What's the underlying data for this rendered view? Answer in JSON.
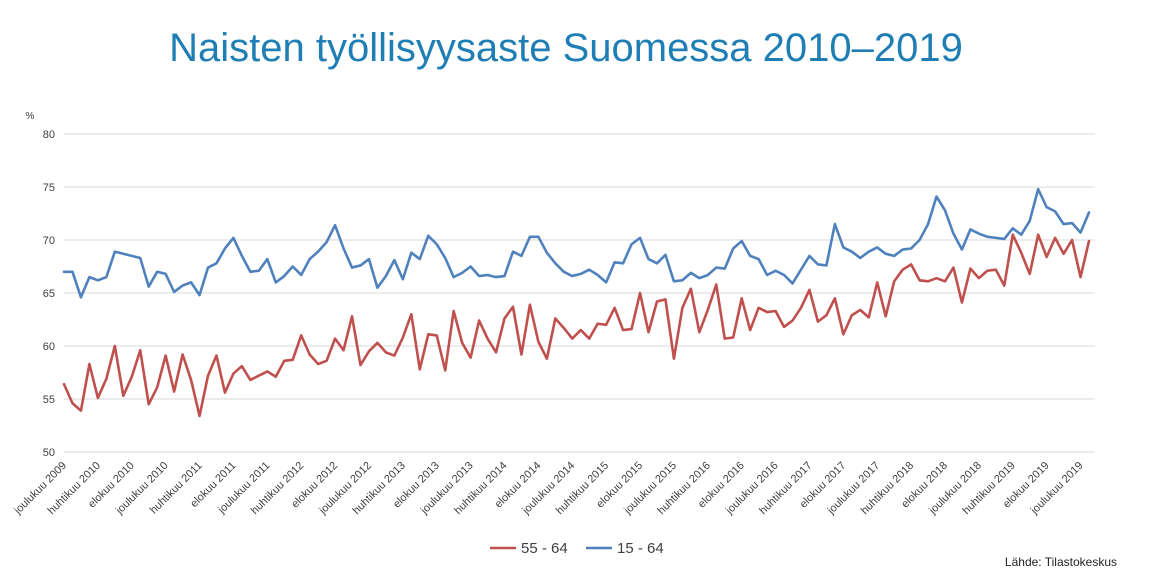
{
  "chart_data": {
    "type": "line",
    "title": "Naisten työllisyysaste Suomessa 2010–2019",
    "ylabel": "%",
    "ylim": [
      50,
      80
    ],
    "yticks": [
      50,
      55,
      60,
      65,
      70,
      75,
      80
    ],
    "grid": true,
    "legend_position": "bottom",
    "source": "Lähde: Tilastokeskus",
    "x_labels": [
      {
        "index": 0,
        "label": "joulukuu 2009"
      },
      {
        "index": 4,
        "label": "huhtikuu 2010"
      },
      {
        "index": 8,
        "label": "elokuu 2010"
      },
      {
        "index": 12,
        "label": "joulukuu 2010"
      },
      {
        "index": 16,
        "label": "huhtikuu 2011"
      },
      {
        "index": 20,
        "label": "elokuu 2011"
      },
      {
        "index": 24,
        "label": "joulukuu 2011"
      },
      {
        "index": 28,
        "label": "huhtikuu 2012"
      },
      {
        "index": 32,
        "label": "elokuu 2012"
      },
      {
        "index": 36,
        "label": "joulukuu 2012"
      },
      {
        "index": 40,
        "label": "huhtikuu 2013"
      },
      {
        "index": 44,
        "label": "elokuu 2013"
      },
      {
        "index": 48,
        "label": "joulukuu 2013"
      },
      {
        "index": 52,
        "label": "huhtikuu 2014"
      },
      {
        "index": 56,
        "label": "elokuu 2014"
      },
      {
        "index": 60,
        "label": "joulukuu 2014"
      },
      {
        "index": 64,
        "label": "huhtikuu 2015"
      },
      {
        "index": 68,
        "label": "elokuu 2015"
      },
      {
        "index": 72,
        "label": "joulukuu 2015"
      },
      {
        "index": 76,
        "label": "huhtikuu 2016"
      },
      {
        "index": 80,
        "label": "elokuu 2016"
      },
      {
        "index": 84,
        "label": "joulukuu 2016"
      },
      {
        "index": 88,
        "label": "huhtikuu 2017"
      },
      {
        "index": 92,
        "label": "elokuu 2017"
      },
      {
        "index": 96,
        "label": "joulukuu 2017"
      },
      {
        "index": 100,
        "label": "huhtikuu 2018"
      },
      {
        "index": 104,
        "label": "elokuu 2018"
      },
      {
        "index": 108,
        "label": "joulukuu 2018"
      },
      {
        "index": 112,
        "label": "huhtikuu 2019"
      },
      {
        "index": 116,
        "label": "elokuu 2019"
      },
      {
        "index": 120,
        "label": "joulukuu 2019"
      }
    ],
    "series": [
      {
        "name": "55 - 64",
        "color": "#c0504d",
        "values": [
          56.4,
          54.6,
          53.9,
          58.3,
          55.1,
          56.9,
          60.0,
          55.3,
          57.1,
          59.6,
          54.5,
          56.1,
          59.1,
          55.7,
          59.2,
          56.8,
          53.4,
          57.2,
          59.1,
          55.6,
          57.4,
          58.1,
          56.8,
          57.2,
          57.6,
          57.1,
          58.6,
          58.7,
          61.0,
          59.2,
          58.3,
          58.6,
          60.7,
          59.6,
          62.8,
          58.2,
          59.5,
          60.3,
          59.4,
          59.1,
          60.8,
          63.0,
          57.8,
          61.1,
          61.0,
          57.7,
          63.3,
          60.3,
          58.9,
          62.4,
          60.7,
          59.4,
          62.6,
          63.7,
          59.2,
          63.9,
          60.4,
          58.8,
          62.6,
          61.7,
          60.7,
          61.5,
          60.7,
          62.1,
          62.0,
          63.6,
          61.5,
          61.6,
          65.0,
          61.3,
          64.2,
          64.4,
          58.8,
          63.6,
          65.4,
          61.3,
          63.4,
          65.8,
          60.7,
          60.8,
          64.5,
          61.5,
          63.6,
          63.2,
          63.3,
          61.8,
          62.4,
          63.6,
          65.3,
          62.3,
          62.9,
          64.5,
          61.1,
          62.9,
          63.4,
          62.7,
          66.0,
          62.8,
          66.1,
          67.2,
          67.7,
          66.2,
          66.1,
          66.4,
          66.1,
          67.4,
          64.1,
          67.3,
          66.4,
          67.1,
          67.2,
          65.7,
          70.5,
          68.8,
          66.8,
          70.5,
          68.4,
          70.2,
          68.7,
          70.0,
          66.5,
          69.9
        ]
      },
      {
        "name": "15 - 64",
        "color": "#4f81bd",
        "values": [
          67.0,
          67.0,
          64.6,
          66.5,
          66.2,
          66.5,
          68.9,
          68.7,
          68.5,
          68.3,
          65.6,
          67.0,
          66.8,
          65.1,
          65.7,
          66.0,
          64.8,
          67.4,
          67.8,
          69.2,
          70.2,
          68.5,
          67.0,
          67.1,
          68.2,
          66.0,
          66.6,
          67.5,
          66.7,
          68.2,
          68.9,
          69.8,
          71.4,
          69.2,
          67.4,
          67.6,
          68.2,
          65.5,
          66.6,
          68.1,
          66.3,
          68.8,
          68.2,
          70.4,
          69.6,
          68.3,
          66.5,
          66.9,
          67.5,
          66.6,
          66.7,
          66.5,
          66.6,
          68.9,
          68.5,
          70.3,
          70.3,
          68.8,
          67.8,
          67.0,
          66.6,
          66.8,
          67.2,
          66.7,
          66.0,
          67.9,
          67.8,
          69.6,
          70.2,
          68.2,
          67.8,
          68.6,
          66.1,
          66.2,
          66.9,
          66.4,
          66.7,
          67.4,
          67.3,
          69.2,
          69.9,
          68.5,
          68.2,
          66.7,
          67.1,
          66.7,
          65.9,
          67.2,
          68.5,
          67.7,
          67.6,
          71.5,
          69.3,
          68.9,
          68.3,
          68.9,
          69.3,
          68.7,
          68.5,
          69.1,
          69.2,
          70.0,
          71.5,
          74.1,
          72.8,
          70.6,
          69.1,
          71.0,
          70.6,
          70.3,
          70.2,
          70.1,
          71.1,
          70.5,
          71.8,
          74.8,
          73.1,
          72.7,
          71.5,
          71.6,
          70.7,
          72.6
        ]
      }
    ]
  }
}
